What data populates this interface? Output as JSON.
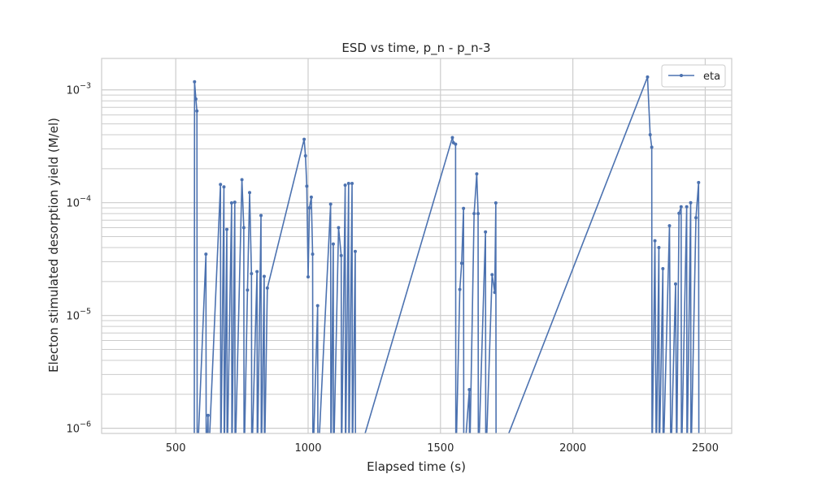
{
  "chart_data": {
    "type": "line",
    "title": "ESD vs time, p_n - p_n-3",
    "xlabel": "Elapsed time (s)",
    "ylabel": "Electon stimulated desorption yield (M/el)",
    "yscale": "log",
    "xlim": [
      220,
      2600
    ],
    "ylim": [
      9e-07,
      0.0019
    ],
    "x_ticks": [
      500,
      1000,
      1500,
      2000,
      2500
    ],
    "y_ticks": [
      {
        "value": 1e-06,
        "base": "10",
        "exp": "−6"
      },
      {
        "value": 1e-05,
        "base": "10",
        "exp": "−5"
      },
      {
        "value": 0.0001,
        "base": "10",
        "exp": "−4"
      },
      {
        "value": 0.001,
        "base": "10",
        "exp": "−3"
      }
    ],
    "grid": true,
    "legend_position": "top-right",
    "series": [
      {
        "name": "eta",
        "color": "#4c72b0",
        "points": [
          [
            570,
            5e-07
          ],
          [
            571,
            0.00118
          ],
          [
            576,
            0.00083
          ],
          [
            580,
            0.00065
          ],
          [
            581,
            5e-07
          ],
          [
            614,
            3.5e-05
          ],
          [
            615,
            5e-07
          ],
          [
            622,
            1.3e-06
          ],
          [
            623,
            5e-07
          ],
          [
            669,
            0.000145
          ],
          [
            670,
            5e-07
          ],
          [
            682,
            0.000138
          ],
          [
            683,
            5e-07
          ],
          [
            693,
            5.8e-05
          ],
          [
            694,
            5e-07
          ],
          [
            711,
            9.95e-05
          ],
          [
            712,
            5e-07
          ],
          [
            723,
            0.000101
          ],
          [
            724,
            5e-07
          ],
          [
            750,
            0.00016
          ],
          [
            757,
            6e-05
          ],
          [
            758,
            5e-07
          ],
          [
            771,
            1.68e-05
          ],
          [
            779,
            0.000123
          ],
          [
            786,
            2.35e-05
          ],
          [
            787,
            5e-07
          ],
          [
            807,
            2.45e-05
          ],
          [
            808,
            5e-07
          ],
          [
            822,
            7.7e-05
          ],
          [
            823,
            5e-07
          ],
          [
            834,
            2.22e-05
          ],
          [
            835,
            5e-07
          ],
          [
            846,
            1.75e-05
          ],
          [
            985,
            0.000365
          ],
          [
            990,
            0.00026
          ],
          [
            995,
            0.00014
          ],
          [
            1000,
            2.2e-05
          ],
          [
            1005,
            9e-05
          ],
          [
            1012,
            0.000112
          ],
          [
            1017,
            3.5e-05
          ],
          [
            1018,
            5e-07
          ],
          [
            1036,
            1.22e-05
          ],
          [
            1037,
            5e-07
          ],
          [
            1085,
            9.7e-05
          ],
          [
            1086,
            5e-07
          ],
          [
            1095,
            4.3e-05
          ],
          [
            1096,
            5e-07
          ],
          [
            1115,
            6e-05
          ],
          [
            1125,
            3.4e-05
          ],
          [
            1126,
            5e-07
          ],
          [
            1140,
            0.000143
          ],
          [
            1141,
            5e-07
          ],
          [
            1153,
            0.000148
          ],
          [
            1154,
            5e-07
          ],
          [
            1166,
            0.000148
          ],
          [
            1167,
            5e-07
          ],
          [
            1178,
            3.7e-05
          ],
          [
            1179,
            5e-07
          ],
          [
            1545,
            0.000378
          ],
          [
            1549,
            0.00034
          ],
          [
            1557,
            0.00033
          ],
          [
            1558,
            5e-07
          ],
          [
            1573,
            1.7e-05
          ],
          [
            1580,
            2.9e-05
          ],
          [
            1587,
            8.9e-05
          ],
          [
            1588,
            5e-07
          ],
          [
            1609,
            2.2e-06
          ],
          [
            1610,
            5e-07
          ],
          [
            1627,
            8e-05
          ],
          [
            1637,
            0.00018
          ],
          [
            1642,
            8e-05
          ],
          [
            1643,
            5e-07
          ],
          [
            1670,
            5.5e-05
          ],
          [
            1671,
            5e-07
          ],
          [
            1695,
            2.3e-05
          ],
          [
            1705,
            1.6e-05
          ],
          [
            1709,
            9.95e-05
          ],
          [
            1710,
            5e-07
          ],
          [
            2282,
            0.0013
          ],
          [
            2292,
            0.0004
          ],
          [
            2298,
            0.00031
          ],
          [
            2299,
            5e-07
          ],
          [
            2310,
            4.6e-05
          ],
          [
            2315,
            5e-07
          ],
          [
            2325,
            4e-05
          ],
          [
            2326,
            5e-07
          ],
          [
            2340,
            2.6e-05
          ],
          [
            2341,
            5e-07
          ],
          [
            2365,
            6.25e-05
          ],
          [
            2370,
            5e-07
          ],
          [
            2388,
            1.9e-05
          ],
          [
            2392,
            5e-07
          ],
          [
            2401,
            8.05e-05
          ],
          [
            2409,
            9.2e-05
          ],
          [
            2410,
            5e-07
          ],
          [
            2430,
            9.2e-05
          ],
          [
            2431,
            5e-07
          ],
          [
            2445,
            0.0001
          ],
          [
            2446,
            5e-07
          ],
          [
            2465,
            7.35e-05
          ],
          [
            2475,
            0.000151
          ],
          [
            2476,
            5e-07
          ]
        ]
      }
    ]
  }
}
